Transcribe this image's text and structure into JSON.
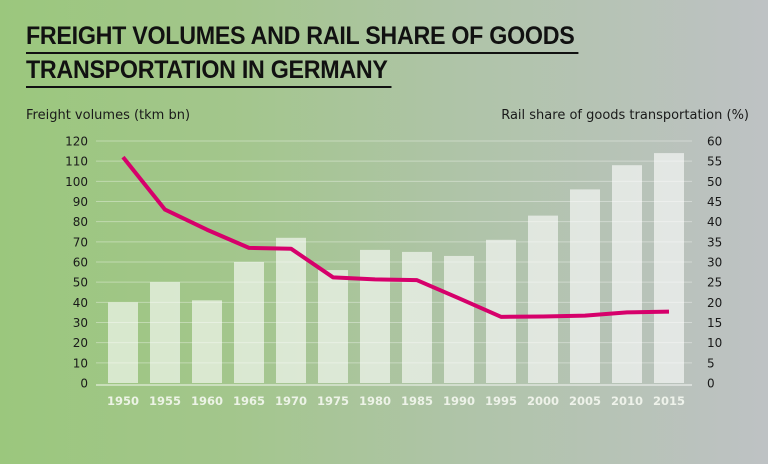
{
  "title_lines": [
    "FREIGHT VOLUMES AND RAIL SHARE OF GOODS",
    "TRANSPORTATION IN GERMANY"
  ],
  "colors": {
    "bar": "#ffffff",
    "line": "#d6006b",
    "text": "#1a1a1a",
    "tick_x": "#f4f7f0"
  },
  "chart_data": {
    "type": "bar+line",
    "title": "FREIGHT VOLUMES AND RAIL SHARE OF GOODS TRANSPORTATION IN GERMANY",
    "categories": [
      "1950",
      "1955",
      "1960",
      "1965",
      "1970",
      "1975",
      "1980",
      "1985",
      "1990",
      "1995",
      "2000",
      "2005",
      "2010",
      "2015"
    ],
    "series": [
      {
        "name": "Freight volumes (tkm bn)",
        "type": "bar",
        "axis": "left",
        "values": [
          40,
          50,
          41,
          60,
          72,
          56,
          66,
          65,
          63,
          71,
          83,
          96,
          108,
          114
        ]
      },
      {
        "name": "Rail share of goods transportation (%)",
        "type": "line",
        "axis": "right",
        "values": [
          56,
          43,
          38,
          33.5,
          33.3,
          26.2,
          25.7,
          25.5,
          21,
          16.4,
          16.5,
          16.7,
          17.5,
          17.7
        ]
      }
    ],
    "ylabel_left": "Freight volumes (tkm bn)",
    "ylabel_right": "Rail share of goods transportation (%)",
    "ylim_left": [
      0,
      120
    ],
    "yticks_left": [
      0,
      10,
      20,
      30,
      40,
      50,
      60,
      70,
      80,
      90,
      100,
      110,
      120
    ],
    "ylim_right": [
      0,
      60
    ],
    "yticks_right": [
      0,
      5,
      10,
      15,
      20,
      25,
      30,
      35,
      40,
      45,
      50,
      55,
      60
    ],
    "grid": true,
    "legend": "none"
  }
}
